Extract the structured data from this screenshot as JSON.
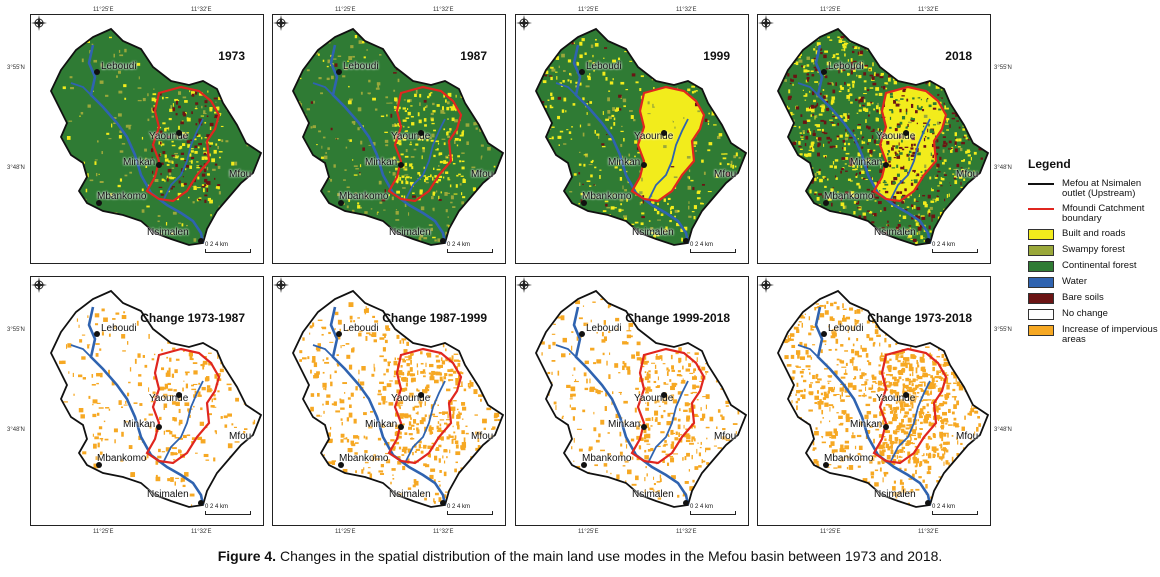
{
  "colors": {
    "built": "#f2ec1c",
    "swampy": "#9aa83a",
    "forest": "#2f7b34",
    "water": "#2f63b0",
    "bare": "#6b1414",
    "nochange": "#ffffff",
    "impervious": "#f6a823",
    "outlet": "#111111",
    "catchment": "#e0261f"
  },
  "panels": [
    {
      "title": "1973",
      "type": "landuse"
    },
    {
      "title": "1987",
      "type": "landuse"
    },
    {
      "title": "1999",
      "type": "landuse"
    },
    {
      "title": "2018",
      "type": "landuse"
    },
    {
      "title": "Change 1973-1987",
      "type": "change"
    },
    {
      "title": "Change 1987-1999",
      "type": "change"
    },
    {
      "title": "Change 1999-2018",
      "type": "change"
    },
    {
      "title": "Change 1973-2018",
      "type": "change"
    }
  ],
  "cities": {
    "leboudi": "Leboudi",
    "yaounde": "Yaounde",
    "minkan": "Minkan",
    "mfou": "Mfou",
    "mbankomo": "Mbankomo",
    "nsimalen": "Nsimalen"
  },
  "ticks": {
    "lon1": "11°25'E",
    "lon2": "11°32'E",
    "lat1": "3°55'N",
    "lat2": "3°48'N"
  },
  "scale": {
    "labels": "0    2    4 km"
  },
  "legend": {
    "title": "Legend",
    "items": [
      {
        "label": "Mefou at Nsimalen outlet (Upstream)",
        "kind": "line",
        "color": "#111111"
      },
      {
        "label": "Mfoundi Catchment boundary",
        "kind": "line",
        "color": "#e0261f"
      },
      {
        "label": "Built and roads",
        "kind": "fill",
        "color": "#f2ec1c"
      },
      {
        "label": "Swampy forest",
        "kind": "fill",
        "color": "#9aa83a"
      },
      {
        "label": "Continental forest",
        "kind": "fill",
        "color": "#2f7b34"
      },
      {
        "label": "Water",
        "kind": "fill",
        "color": "#2f63b0"
      },
      {
        "label": "Bare soils",
        "kind": "fill",
        "color": "#6b1414"
      },
      {
        "label": "No change",
        "kind": "fill",
        "color": "#ffffff"
      },
      {
        "label": "Increase of impervious areas",
        "kind": "fill",
        "color": "#f6a823"
      }
    ]
  },
  "caption": {
    "figure": "Figure 4.",
    "text": " Changes in the spatial distribution of the main land use modes in the Mefou basin between 1973 and 2018."
  }
}
